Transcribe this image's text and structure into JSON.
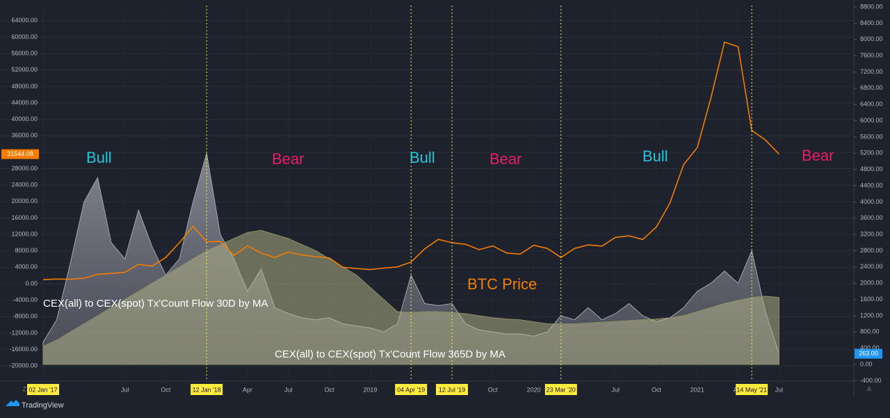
{
  "chart_data": {
    "type": "line",
    "categories": [
      "02 Jan '17",
      null,
      null,
      null,
      null,
      null,
      "Jul",
      null,
      null,
      "Oct",
      null,
      null,
      "12 Jan '18",
      null,
      null,
      "Apr",
      null,
      null,
      "Jul",
      null,
      null,
      "Oct",
      null,
      null,
      "2019",
      null,
      null,
      "04 Apr '19",
      null,
      null,
      "12 Jul '19",
      null,
      null,
      "Oct",
      null,
      null,
      "2020",
      null,
      "23 Mar '20",
      null,
      null,
      null,
      "Jul",
      null,
      null,
      "Oct",
      null,
      null,
      "2021",
      null,
      null,
      "Apr",
      "14 May '21",
      null,
      "Jul",
      null
    ],
    "highlighted": [
      "02 Jan '17",
      "12 Jan '18",
      "04 Apr '19",
      "12 Jul '19",
      "23 Mar '20",
      "14 May '21"
    ],
    "event_lines": [
      "12 Jan '18",
      "04 Apr '19",
      "12 Jul '19",
      "23 Mar '20",
      "14 May '21"
    ],
    "event_line_color": "#ffeb3b",
    "grid": true,
    "ylim": [
      -23700,
      67700
    ],
    "yticks": [
      {
        "value": -20000,
        "label": "-20000.00"
      },
      {
        "value": -16000,
        "label": "-16000.00"
      },
      {
        "value": -12000,
        "label": "-12000.00"
      },
      {
        "value": -8000,
        "label": "-8000.00"
      },
      {
        "value": -4000,
        "label": "-4000.00"
      },
      {
        "value": 0,
        "label": "0.00"
      },
      {
        "value": 4000,
        "label": "4000.00"
      },
      {
        "value": 8000,
        "label": "8000.00"
      },
      {
        "value": 12000,
        "label": "12000.00"
      },
      {
        "value": 16000,
        "label": "16000.00"
      },
      {
        "value": 20000,
        "label": "20000.00"
      },
      {
        "value": 24000,
        "label": "24000.00"
      },
      {
        "value": 28000,
        "label": "28000.00"
      },
      {
        "value": 32000,
        "label": "32000.00"
      },
      {
        "value": 36000,
        "label": "36000.00"
      },
      {
        "value": 40000,
        "label": "40000.00"
      },
      {
        "value": 44000,
        "label": "44000.00"
      },
      {
        "value": 48000,
        "label": "48000.00"
      },
      {
        "value": 52000,
        "label": "52000.00"
      },
      {
        "value": 56000,
        "label": "56000.00"
      },
      {
        "value": 60000,
        "label": "60000.00"
      },
      {
        "value": 64000,
        "label": "64000.00"
      }
    ],
    "y2lim": [
      -410,
      8835
    ],
    "y2ticks": [
      {
        "value": -400,
        "label": "-400.00"
      },
      {
        "value": 0,
        "label": "0.00"
      },
      {
        "value": 400,
        "label": "400.00"
      },
      {
        "value": 800,
        "label": "800.00"
      },
      {
        "value": 1200,
        "label": "1200.00"
      },
      {
        "value": 1600,
        "label": "1600.00"
      },
      {
        "value": 2000,
        "label": "2000.00"
      },
      {
        "value": 2400,
        "label": "2400.00"
      },
      {
        "value": 2800,
        "label": "2800.00"
      },
      {
        "value": 3200,
        "label": "3200.00"
      },
      {
        "value": 3600,
        "label": "3600.00"
      },
      {
        "value": 4000,
        "label": "4000.00"
      },
      {
        "value": 4400,
        "label": "4400.00"
      },
      {
        "value": 4800,
        "label": "4800.00"
      },
      {
        "value": 5200,
        "label": "5200.00"
      },
      {
        "value": 5600,
        "label": "5600.00"
      },
      {
        "value": 6000,
        "label": "6000.00"
      },
      {
        "value": 6400,
        "label": "6400.00"
      },
      {
        "value": 6800,
        "label": "6800.00"
      },
      {
        "value": 7200,
        "label": "7200.00"
      },
      {
        "value": 7600,
        "label": "7600.00"
      },
      {
        "value": 8000,
        "label": "8000.00"
      },
      {
        "value": 8400,
        "label": "8400.00"
      },
      {
        "value": 8800,
        "label": "8800.00"
      }
    ],
    "series": [
      {
        "name": "CEX(all) to CEX(spot) Tx'Count Flow 30D by MA",
        "type": "area",
        "axis": "y2",
        "color": "#8a8d99",
        "last_label": "263.00",
        "last_label_color": "#2196f3",
        "values": [
          550,
          1100,
          2500,
          4000,
          4600,
          3000,
          2600,
          3800,
          2900,
          2200,
          2600,
          4000,
          5200,
          3200,
          2600,
          1800,
          2350,
          1400,
          1250,
          1150,
          1100,
          1150,
          1000,
          950,
          900,
          800,
          1000,
          2200,
          1500,
          1450,
          1500,
          1000,
          850,
          800,
          750,
          750,
          700,
          800,
          1200,
          1100,
          1400,
          1100,
          1250,
          1500,
          1200,
          1050,
          1150,
          1400,
          1800,
          2000,
          2300,
          2000,
          2800,
          1300,
          263,
          null
        ]
      },
      {
        "name": "CEX(all) to CEX(spot) Tx'Count Flow 365D by MA",
        "type": "area",
        "axis": "y2",
        "color": "#b9b98c",
        "values": [
          450,
          600,
          800,
          1000,
          1200,
          1400,
          1600,
          1800,
          2000,
          2200,
          2400,
          2600,
          2800,
          2950,
          3100,
          3250,
          3300,
          3200,
          3100,
          2950,
          2800,
          2600,
          2400,
          2200,
          1900,
          1600,
          1300,
          1280,
          1300,
          1300,
          1280,
          1250,
          1200,
          1150,
          1120,
          1100,
          1050,
          1000,
          1000,
          1000,
          1020,
          1040,
          1060,
          1080,
          1100,
          1120,
          1150,
          1200,
          1300,
          1400,
          1500,
          1580,
          1650,
          1680,
          1650,
          null
        ]
      },
      {
        "name": "BTC Price",
        "type": "line",
        "axis": "y",
        "color": "#f57c00",
        "last_label": "31544.08",
        "last_label_color": "#f57c00",
        "values": [
          1000,
          1150,
          1080,
          1350,
          2300,
          2500,
          2800,
          4700,
          4300,
          6400,
          10000,
          14000,
          10200,
          10300,
          6900,
          9200,
          7500,
          6400,
          7700,
          7000,
          6600,
          6300,
          4000,
          3700,
          3450,
          3800,
          4100,
          5300,
          8500,
          10800,
          10000,
          9600,
          8300,
          9200,
          7500,
          7200,
          9350,
          8600,
          6400,
          8600,
          9450,
          9150,
          11300,
          11650,
          10780,
          13800,
          19700,
          29000,
          33100,
          45200,
          58800,
          57700,
          37300,
          35000,
          31544.08,
          null
        ]
      }
    ],
    "annotations": [
      {
        "text": "Bull",
        "color": "#26c6da"
      },
      {
        "text": "Bear",
        "color": "#e91e63"
      },
      {
        "text": "Bull",
        "color": "#26c6da"
      },
      {
        "text": "Bear",
        "color": "#e91e63"
      },
      {
        "text": "Bull",
        "color": "#26c6da"
      },
      {
        "text": "Bear",
        "color": "#e91e63"
      }
    ],
    "corner_buttons": [
      "Z",
      "A"
    ],
    "brand": "TradingView"
  }
}
